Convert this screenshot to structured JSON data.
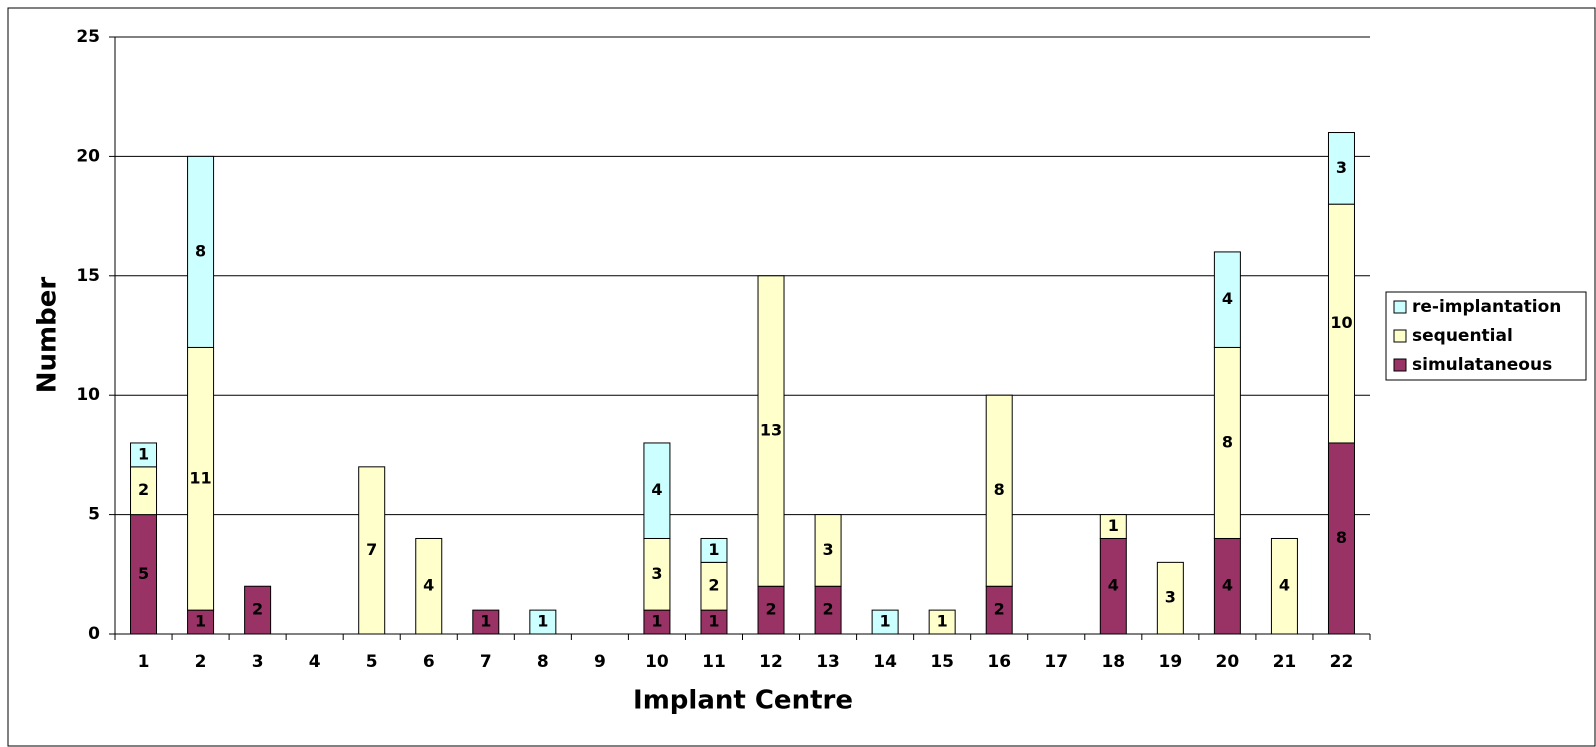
{
  "chart_data": {
    "type": "bar",
    "stacked": true,
    "x_label": "Implant Centre",
    "y_label": "Number",
    "categories": [
      "1",
      "2",
      "3",
      "4",
      "5",
      "6",
      "7",
      "8",
      "9",
      "10",
      "11",
      "12",
      "13",
      "14",
      "15",
      "16",
      "17",
      "18",
      "19",
      "20",
      "21",
      "22"
    ],
    "series": [
      {
        "name": "simulataneous",
        "color": "#993366",
        "values": [
          5,
          1,
          2,
          0,
          0,
          0,
          1,
          0,
          0,
          1,
          1,
          2,
          2,
          0,
          0,
          2,
          0,
          4,
          0,
          4,
          0,
          8
        ]
      },
      {
        "name": "sequential",
        "color": "#ffffcc",
        "values": [
          2,
          11,
          0,
          0,
          7,
          4,
          0,
          0,
          0,
          3,
          2,
          13,
          3,
          0,
          1,
          8,
          0,
          1,
          3,
          8,
          4,
          10
        ]
      },
      {
        "name": "re-implantation",
        "color": "#ccffff",
        "values": [
          1,
          8,
          0,
          0,
          0,
          0,
          0,
          1,
          0,
          4,
          1,
          0,
          0,
          1,
          0,
          0,
          0,
          0,
          0,
          4,
          0,
          3
        ]
      }
    ],
    "ylim": [
      0,
      25
    ],
    "yticks": [
      0,
      5,
      10,
      15,
      20,
      25
    ],
    "grid": true,
    "legend": "right"
  }
}
